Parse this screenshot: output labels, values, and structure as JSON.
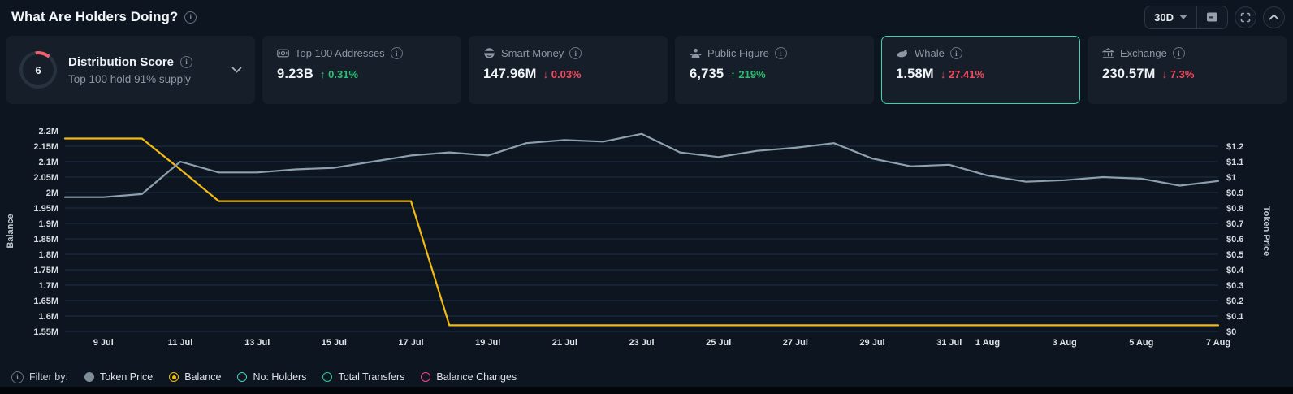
{
  "header": {
    "title": "What Are Holders Doing?",
    "range_selector": "30D"
  },
  "distribution_card": {
    "score": "6",
    "title": "Distribution Score",
    "subtitle": "Top 100 hold 91% supply"
  },
  "metric_cards": [
    {
      "label": "Top 100 Addresses",
      "icon": "banknote-icon",
      "value": "9.23B",
      "arrow": "↑",
      "change": "0.31%",
      "direction": "up",
      "selected": false
    },
    {
      "label": "Smart Money",
      "icon": "smart-money-icon",
      "value": "147.96M",
      "arrow": "↓",
      "change": "0.03%",
      "direction": "down",
      "selected": false
    },
    {
      "label": "Public Figure",
      "icon": "public-figure-icon",
      "value": "6,735",
      "arrow": "↑",
      "change": "219%",
      "direction": "up",
      "selected": false
    },
    {
      "label": "Whale",
      "icon": "whale-icon",
      "value": "1.58M",
      "arrow": "↓",
      "change": "27.41%",
      "direction": "down",
      "selected": true
    },
    {
      "label": "Exchange",
      "icon": "exchange-bank-icon",
      "value": "230.57M",
      "arrow": "↓",
      "change": "7.3%",
      "direction": "down",
      "selected": false
    }
  ],
  "chart_data": {
    "type": "line",
    "x": [
      "8 Jul",
      "9 Jul",
      "10 Jul",
      "11 Jul",
      "12 Jul",
      "13 Jul",
      "14 Jul",
      "15 Jul",
      "16 Jul",
      "17 Jul",
      "18 Jul",
      "19 Jul",
      "20 Jul",
      "21 Jul",
      "22 Jul",
      "23 Jul",
      "24 Jul",
      "25 Jul",
      "26 Jul",
      "27 Jul",
      "28 Jul",
      "29 Jul",
      "30 Jul",
      "31 Jul",
      "1 Aug",
      "2 Aug",
      "3 Aug",
      "4 Aug",
      "5 Aug",
      "6 Aug",
      "7 Aug"
    ],
    "x_tick_labels": [
      "9 Jul",
      "11 Jul",
      "13 Jul",
      "15 Jul",
      "17 Jul",
      "19 Jul",
      "21 Jul",
      "23 Jul",
      "25 Jul",
      "27 Jul",
      "29 Jul",
      "31 Jul",
      "1 Aug",
      "3 Aug",
      "5 Aug",
      "7 Aug"
    ],
    "x_tick_indices": [
      1,
      3,
      5,
      7,
      9,
      11,
      13,
      15,
      17,
      19,
      21,
      23,
      24,
      26,
      28,
      30
    ],
    "series": [
      {
        "name": "Balance",
        "axis": "left",
        "color": "#f2ba12",
        "values": [
          2175000,
          2175000,
          2175000,
          2075000,
          1972000,
          1972000,
          1972000,
          1972000,
          1972000,
          1972000,
          1570000,
          1570000,
          1570000,
          1570000,
          1570000,
          1570000,
          1570000,
          1570000,
          1570000,
          1570000,
          1570000,
          1570000,
          1570000,
          1570000,
          1570000,
          1570000,
          1570000,
          1570000,
          1570000,
          1570000,
          1570000
        ]
      },
      {
        "name": "Token Price",
        "axis": "right",
        "color": "#8da0ad",
        "values": [
          0.87,
          0.87,
          0.89,
          1.1,
          1.03,
          1.03,
          1.05,
          1.06,
          1.1,
          1.14,
          1.16,
          1.14,
          1.22,
          1.24,
          1.23,
          1.28,
          1.16,
          1.13,
          1.17,
          1.19,
          1.22,
          1.12,
          1.07,
          1.08,
          1.01,
          0.97,
          0.98,
          1.0,
          0.99,
          0.945,
          0.975
        ]
      }
    ],
    "left_axis": {
      "title": "Balance",
      "range": [
        1550000,
        2200000
      ],
      "tick_max": 2200000,
      "ticks": [
        "2.2M",
        "2.15M",
        "2.1M",
        "2.05M",
        "2M",
        "1.95M",
        "1.9M",
        "1.85M",
        "1.8M",
        "1.75M",
        "1.7M",
        "1.65M",
        "1.6M",
        "1.55M"
      ]
    },
    "right_axis": {
      "title": "Token Price",
      "range": [
        0,
        1.3
      ],
      "tick_max": 1.2,
      "ticks": [
        "$1.2",
        "$1.1",
        "$1",
        "$0.9",
        "$0.8",
        "$0.7",
        "$0.6",
        "$0.5",
        "$0.4",
        "$0.3",
        "$0.2",
        "$0.1",
        "$0"
      ]
    },
    "grid": "horizontal",
    "legend_position": "bottom"
  },
  "filter_bar": {
    "label": "Filter by:",
    "options": [
      {
        "label": "Token Price",
        "color": "#7e8b99",
        "marker": "filled",
        "selected": false
      },
      {
        "label": "Balance",
        "color": "#f0b915",
        "marker": "radio",
        "selected": true
      },
      {
        "label": "No: Holders",
        "color": "#3ed6c0",
        "marker": "ring",
        "selected": false
      },
      {
        "label": "Total Transfers",
        "color": "#2fc98c",
        "marker": "ring",
        "selected": false
      },
      {
        "label": "Balance Changes",
        "color": "#e8488a",
        "marker": "ring",
        "selected": false
      }
    ]
  },
  "colors": {
    "page_bg": "#0d1520",
    "card_bg": "#151e29",
    "accent_up": "#2ebd71",
    "accent_down": "#f04a5e",
    "balance_line": "#f2ba12",
    "price_line": "#8da0ad",
    "selected_card_border": "#37d8af",
    "gauge_arc": "#ee6270",
    "gridline": "#1d3147"
  }
}
